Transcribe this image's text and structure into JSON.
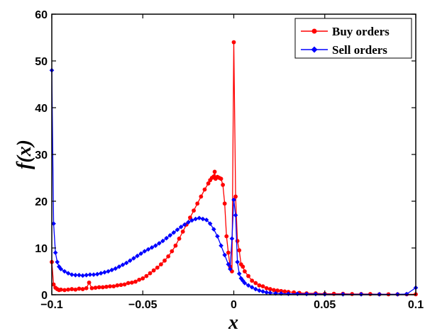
{
  "chart_data": {
    "type": "line",
    "xlabel": "x",
    "ylabel": "f(x)",
    "xlim": [
      -0.1,
      0.1
    ],
    "ylim": [
      0,
      60
    ],
    "x_ticks": [
      -0.1,
      -0.05,
      0,
      0.05,
      0.1
    ],
    "x_tick_labels": [
      "−0.1",
      "−0.05",
      "0",
      "0.05",
      "0.1"
    ],
    "y_ticks": [
      0,
      10,
      20,
      30,
      40,
      50,
      60
    ],
    "y_tick_labels": [
      "0",
      "10",
      "20",
      "30",
      "40",
      "50",
      "60"
    ],
    "grid": false,
    "legend_position": "top-right",
    "series": [
      {
        "name": "Buy orders",
        "color": "#ff0000",
        "marker": "circle",
        "points": [
          [
            -0.1,
            7.0
          ],
          [
            -0.099,
            2.2
          ],
          [
            -0.098,
            1.5
          ],
          [
            -0.097,
            1.2
          ],
          [
            -0.096,
            1.0
          ],
          [
            -0.095,
            1.1
          ],
          [
            -0.093,
            1.0
          ],
          [
            -0.091,
            1.1
          ],
          [
            -0.089,
            1.2
          ],
          [
            -0.087,
            1.1
          ],
          [
            -0.085,
            1.3
          ],
          [
            -0.083,
            1.2
          ],
          [
            -0.081,
            1.4
          ],
          [
            -0.0795,
            2.6
          ],
          [
            -0.078,
            1.4
          ],
          [
            -0.076,
            1.5
          ],
          [
            -0.074,
            1.6
          ],
          [
            -0.072,
            1.6
          ],
          [
            -0.07,
            1.7
          ],
          [
            -0.068,
            1.8
          ],
          [
            -0.066,
            1.8
          ],
          [
            -0.064,
            2.0
          ],
          [
            -0.062,
            2.1
          ],
          [
            -0.06,
            2.2
          ],
          [
            -0.058,
            2.5
          ],
          [
            -0.056,
            2.6
          ],
          [
            -0.054,
            2.8
          ],
          [
            -0.052,
            3.2
          ],
          [
            -0.05,
            3.5
          ],
          [
            -0.048,
            4.0
          ],
          [
            -0.046,
            4.6
          ],
          [
            -0.044,
            5.2
          ],
          [
            -0.042,
            5.8
          ],
          [
            -0.04,
            6.5
          ],
          [
            -0.038,
            7.3
          ],
          [
            -0.036,
            8.2
          ],
          [
            -0.034,
            9.3
          ],
          [
            -0.032,
            10.5
          ],
          [
            -0.03,
            12.0
          ],
          [
            -0.028,
            13.5
          ],
          [
            -0.026,
            15.0
          ],
          [
            -0.024,
            16.5
          ],
          [
            -0.022,
            18.0
          ],
          [
            -0.02,
            19.5
          ],
          [
            -0.018,
            21.0
          ],
          [
            -0.016,
            22.5
          ],
          [
            -0.014,
            23.8
          ],
          [
            -0.013,
            24.5
          ],
          [
            -0.012,
            25.0
          ],
          [
            -0.011,
            25.3
          ],
          [
            -0.0105,
            26.3
          ],
          [
            -0.01,
            24.8
          ],
          [
            -0.009,
            25.2
          ],
          [
            -0.008,
            25.0
          ],
          [
            -0.007,
            24.8
          ],
          [
            -0.006,
            23.5
          ],
          [
            -0.005,
            19.5
          ],
          [
            -0.004,
            12.5
          ],
          [
            -0.003,
            9.0
          ],
          [
            -0.002,
            6.0
          ],
          [
            -0.001,
            5.0
          ],
          [
            0.0,
            54.0
          ],
          [
            0.001,
            21.0
          ],
          [
            0.002,
            11.5
          ],
          [
            0.003,
            9.5
          ],
          [
            0.004,
            6.5
          ],
          [
            0.005,
            6.0
          ],
          [
            0.006,
            5.0
          ],
          [
            0.008,
            4.0
          ],
          [
            0.01,
            3.0
          ],
          [
            0.012,
            2.5
          ],
          [
            0.014,
            2.0
          ],
          [
            0.016,
            1.8
          ],
          [
            0.018,
            1.4
          ],
          [
            0.02,
            1.2
          ],
          [
            0.022,
            1.0
          ],
          [
            0.024,
            0.9
          ],
          [
            0.026,
            0.8
          ],
          [
            0.028,
            0.7
          ],
          [
            0.03,
            0.6
          ],
          [
            0.033,
            0.5
          ],
          [
            0.036,
            0.4
          ],
          [
            0.04,
            0.3
          ],
          [
            0.045,
            0.3
          ],
          [
            0.05,
            0.2
          ],
          [
            0.055,
            0.2
          ],
          [
            0.06,
            0.2
          ],
          [
            0.065,
            0.15
          ],
          [
            0.07,
            0.15
          ],
          [
            0.075,
            0.15
          ],
          [
            0.08,
            0.1
          ],
          [
            0.085,
            0.1
          ],
          [
            0.09,
            0.1
          ],
          [
            0.095,
            0.1
          ],
          [
            0.1,
            0.1
          ]
        ]
      },
      {
        "name": "Sell orders",
        "color": "#0000ff",
        "marker": "diamond",
        "points": [
          [
            -0.1,
            48.0
          ],
          [
            -0.099,
            15.2
          ],
          [
            -0.098,
            9.0
          ],
          [
            -0.097,
            7.0
          ],
          [
            -0.096,
            6.0
          ],
          [
            -0.095,
            5.5
          ],
          [
            -0.093,
            5.0
          ],
          [
            -0.091,
            4.6
          ],
          [
            -0.089,
            4.3
          ],
          [
            -0.087,
            4.2
          ],
          [
            -0.085,
            4.2
          ],
          [
            -0.083,
            4.1
          ],
          [
            -0.081,
            4.2
          ],
          [
            -0.079,
            4.3
          ],
          [
            -0.077,
            4.3
          ],
          [
            -0.075,
            4.4
          ],
          [
            -0.073,
            4.6
          ],
          [
            -0.071,
            4.8
          ],
          [
            -0.069,
            5.0
          ],
          [
            -0.067,
            5.3
          ],
          [
            -0.065,
            5.6
          ],
          [
            -0.063,
            6.0
          ],
          [
            -0.061,
            6.4
          ],
          [
            -0.059,
            6.8
          ],
          [
            -0.057,
            7.3
          ],
          [
            -0.055,
            7.8
          ],
          [
            -0.053,
            8.3
          ],
          [
            -0.051,
            8.8
          ],
          [
            -0.049,
            9.3
          ],
          [
            -0.047,
            9.7
          ],
          [
            -0.045,
            10.1
          ],
          [
            -0.043,
            10.5
          ],
          [
            -0.041,
            11.0
          ],
          [
            -0.039,
            11.5
          ],
          [
            -0.037,
            12.1
          ],
          [
            -0.035,
            12.7
          ],
          [
            -0.033,
            13.3
          ],
          [
            -0.031,
            13.9
          ],
          [
            -0.029,
            14.5
          ],
          [
            -0.027,
            15.0
          ],
          [
            -0.025,
            15.5
          ],
          [
            -0.023,
            15.9
          ],
          [
            -0.021,
            16.2
          ],
          [
            -0.019,
            16.4
          ],
          [
            -0.017,
            16.2
          ],
          [
            -0.015,
            16.0
          ],
          [
            -0.013,
            15.2
          ],
          [
            -0.011,
            14.0
          ],
          [
            -0.009,
            12.5
          ],
          [
            -0.007,
            10.5
          ],
          [
            -0.005,
            8.5
          ],
          [
            -0.003,
            6.5
          ],
          [
            -0.002,
            5.5
          ],
          [
            -0.001,
            12.0
          ],
          [
            0.0,
            20.3
          ],
          [
            0.001,
            17.0
          ],
          [
            0.002,
            7.0
          ],
          [
            0.003,
            4.5
          ],
          [
            0.004,
            3.5
          ],
          [
            0.005,
            3.0
          ],
          [
            0.006,
            2.5
          ],
          [
            0.008,
            2.0
          ],
          [
            0.01,
            1.6
          ],
          [
            0.012,
            1.2
          ],
          [
            0.014,
            0.9
          ],
          [
            0.016,
            0.7
          ],
          [
            0.018,
            0.5
          ],
          [
            0.02,
            0.4
          ],
          [
            0.023,
            0.3
          ],
          [
            0.026,
            0.25
          ],
          [
            0.03,
            0.2
          ],
          [
            0.035,
            0.2
          ],
          [
            0.04,
            0.15
          ],
          [
            0.045,
            0.15
          ],
          [
            0.05,
            0.1
          ],
          [
            0.06,
            0.1
          ],
          [
            0.07,
            0.1
          ],
          [
            0.08,
            0.1
          ],
          [
            0.09,
            0.1
          ],
          [
            0.095,
            0.15
          ],
          [
            0.1,
            1.5
          ]
        ]
      }
    ]
  }
}
